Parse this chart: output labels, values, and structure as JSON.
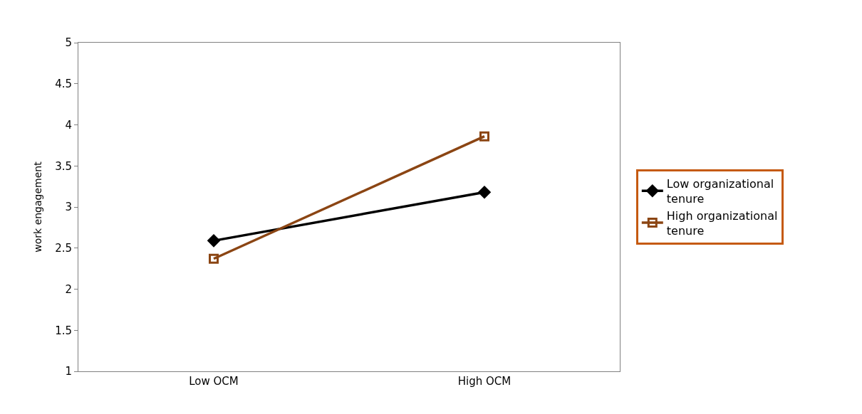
{
  "chart_data": {
    "type": "line",
    "ylabel": "work engagement",
    "categories": [
      "Low OCM",
      "High OCM"
    ],
    "series": [
      {
        "name": "Low organizational tenure",
        "color": "#000000",
        "marker": "diamond",
        "values": [
          2.59,
          3.18
        ]
      },
      {
        "name": "High organizational tenure",
        "color": "#8b4513",
        "marker": "square",
        "values": [
          2.37,
          3.86
        ]
      }
    ],
    "ylim": [
      1,
      5
    ],
    "yticks": [
      1,
      1.5,
      2,
      2.5,
      3,
      3.5,
      4,
      4.5,
      5
    ],
    "legend": "right",
    "line_style": "solid"
  }
}
